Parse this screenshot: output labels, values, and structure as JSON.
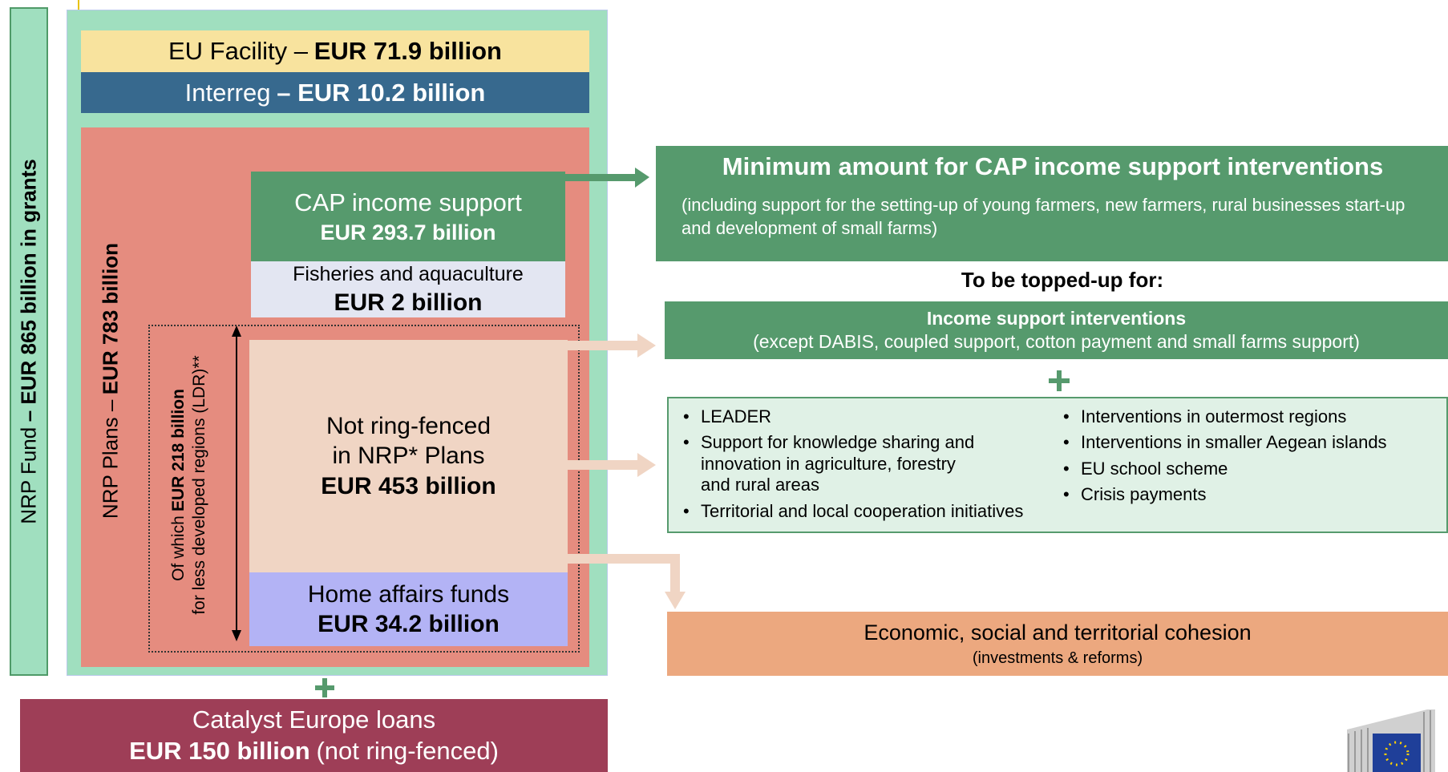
{
  "nrp_fund": {
    "text": "NRP Fund",
    "strong": "– EUR 865 billion in grants"
  },
  "eu_facility": {
    "text": "EU Facility –",
    "strong": "EUR 71.9 billion"
  },
  "interreg": {
    "text": "Interreg",
    "strong": "– EUR 10.2 billion"
  },
  "nrp_plans": {
    "text": "NRP Plans –",
    "strong": "EUR 783 billion"
  },
  "cap_support": {
    "title": "CAP income support",
    "amount": "EUR 293.7 billion"
  },
  "fisheries": {
    "title": "Fisheries and aquaculture",
    "amount": "EUR 2 billion"
  },
  "ldr": {
    "line1_text": "Of which",
    "line1_strong": "EUR 218 billion",
    "line2": "for less developed regions (LDR)**"
  },
  "not_ring_fenced": {
    "lines": [
      "Not ring-fenced",
      "in NRP* Plans"
    ],
    "amount": "EUR 453 billion"
  },
  "home_affairs": {
    "title": "Home affairs funds",
    "amount": "EUR 34.2 billion"
  },
  "catalyst": {
    "title": "Catalyst Europe loans",
    "strong": "EUR 150 billion",
    "text": "(not ring-fenced)"
  },
  "minimum": {
    "title": "Minimum amount for CAP income support interventions",
    "description": "(including support for the setting-up of young farmers, new farmers, rural businesses start-up and development of small farms)"
  },
  "topped_up": "To be topped-up for:",
  "income_support": {
    "title": "Income support interventions",
    "description": "(except DABIS, coupled support, cotton payment and small farms support)"
  },
  "list": {
    "left": [
      "LEADER",
      "Support for knowledge sharing and innovation in agriculture, forestry and rural areas",
      "Territorial and local cooperation initiatives"
    ],
    "right": [
      "Interventions in outermost regions",
      "Interventions in smaller Aegean islands",
      "EU school scheme",
      "Crisis payments"
    ]
  },
  "cohesion": {
    "title": "Economic, social and territorial cohesion",
    "subtitle": "(investments & reforms)"
  }
}
